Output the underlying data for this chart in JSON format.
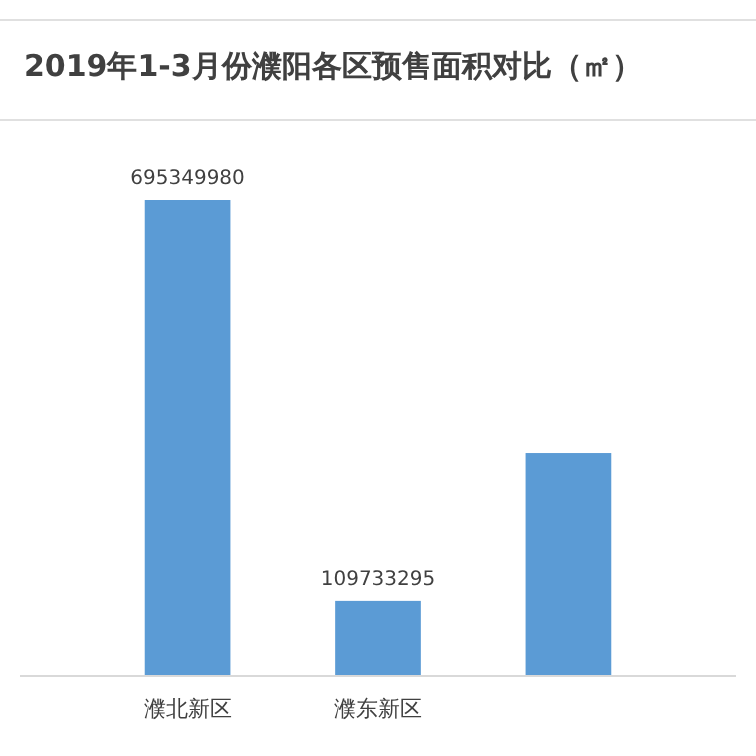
{
  "chart_data": {
    "type": "bar",
    "title": "2019年1-3月份濮阳各区预售面积对比（㎡）",
    "categories": [
      "濮北新区",
      "濮东新区",
      null
    ],
    "values": [
      695349980,
      109733295,
      325700000
    ],
    "value_labels": [
      "695349980",
      "109733295",
      null
    ],
    "color": "#5b9bd5"
  }
}
